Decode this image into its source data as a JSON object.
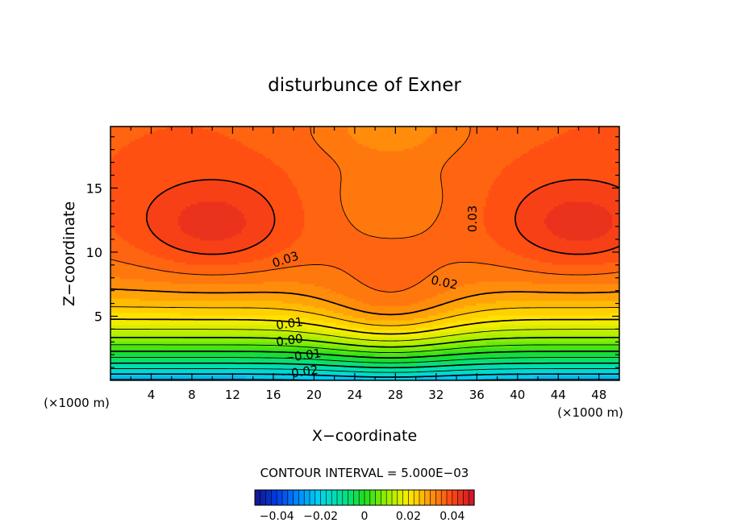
{
  "chart_data": {
    "type": "contour",
    "title": "disturbunce of Exner",
    "xlabel": "X−coordinate",
    "ylabel": "Z−coordinate",
    "x_unit_left": "(×1000 m)",
    "x_unit_right": "(×1000 m)",
    "xlim": [
      0,
      50
    ],
    "ylim": [
      0,
      19.8
    ],
    "x_ticks": [
      "4",
      "8",
      "12",
      "16",
      "20",
      "24",
      "28",
      "32",
      "36",
      "40",
      "44",
      "48"
    ],
    "y_ticks": [
      "5",
      "10",
      "15"
    ],
    "contour_interval_text": "CONTOUR INTERVAL = 5.000E−03",
    "contour_labels": [
      {
        "text": "0.03",
        "x": 17.2,
        "y": 9.4
      },
      {
        "text": "0.03",
        "x": 35.6,
        "y": 12.6
      },
      {
        "text": "0.02",
        "x": 32.8,
        "y": 7.6
      },
      {
        "text": "0.01",
        "x": 17.6,
        "y": 4.4
      },
      {
        "text": "0.00",
        "x": 17.6,
        "y": 3.1
      },
      {
        "text": "−0.01",
        "x": 18.9,
        "y": 1.9
      },
      {
        "text": "−0.02",
        "x": 18.6,
        "y": 0.6
      }
    ],
    "colorbar": {
      "range": [
        -0.05,
        0.05
      ],
      "tick_values": [
        -0.04,
        -0.02,
        0,
        0.02,
        0.04
      ],
      "tick_labels": [
        "−0.04",
        "−0.02",
        "0",
        "0.02",
        "0.04"
      ]
    }
  }
}
